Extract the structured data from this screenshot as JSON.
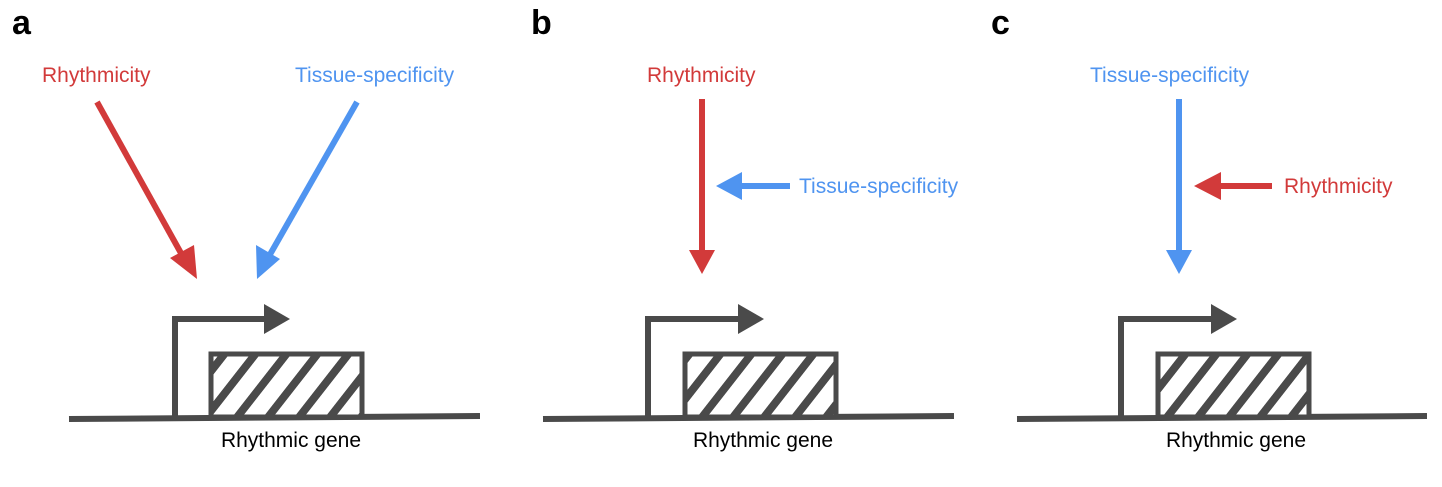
{
  "colors": {
    "rhythmicity": "#d23a3a",
    "tissue_specificity": "#4f94f0",
    "gene": "#4a4a4a"
  },
  "panels": [
    {
      "letter": "a",
      "labels": {
        "rhythmicity": "Rhythmicity",
        "tissue": "Tissue-specificity"
      },
      "gene_label": "Rhythmic gene"
    },
    {
      "letter": "b",
      "labels": {
        "rhythmicity": "Rhythmicity",
        "tissue": "Tissue-specificity"
      },
      "gene_label": "Rhythmic gene"
    },
    {
      "letter": "c",
      "labels": {
        "rhythmicity": "Rhythmicity",
        "tissue": "Tissue-specificity"
      },
      "gene_label": "Rhythmic gene"
    }
  ]
}
